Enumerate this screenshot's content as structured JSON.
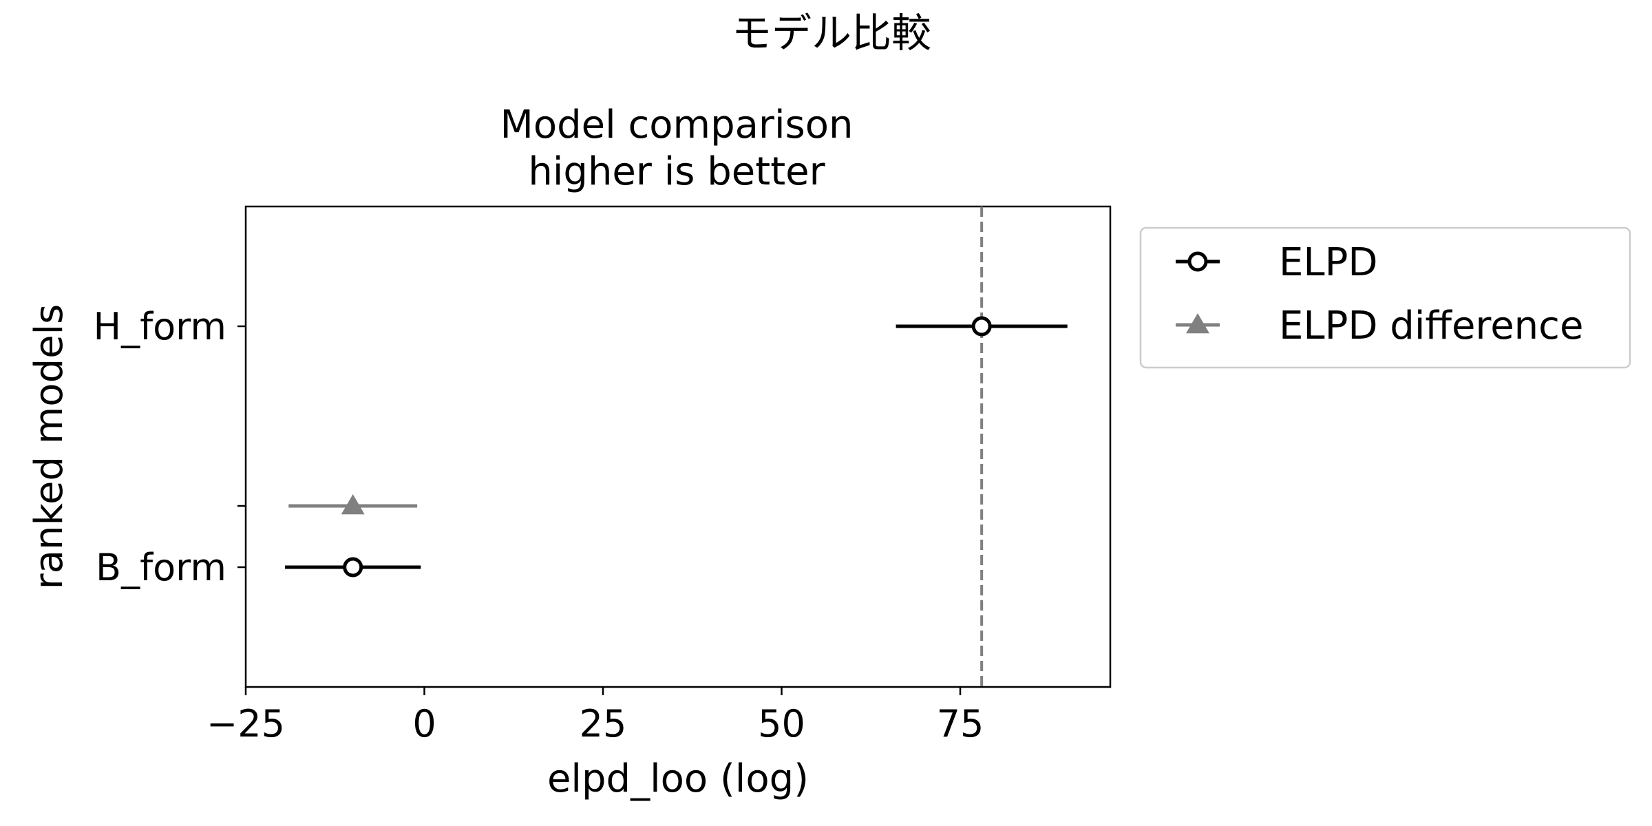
{
  "chart_data": {
    "type": "scatter",
    "suptitle": "モデル比較",
    "title_lines": [
      "Model comparison",
      "higher is better"
    ],
    "xlabel": "elpd_loo (log)",
    "ylabel": "ranked models",
    "xlim": [
      -25,
      96
    ],
    "x_ticks": [
      -25,
      0,
      25,
      50,
      75
    ],
    "x_tick_labels": [
      "−25",
      "0",
      "25",
      "50",
      "75"
    ],
    "models": [
      "H_form",
      "B_form"
    ],
    "grid": false,
    "legend_placement": "outside-upper-right",
    "reference_line": {
      "x": 78,
      "color": "#808080",
      "style": "dashed"
    },
    "series": [
      {
        "name": "ELPD",
        "marker": "open-circle",
        "color": "#000000",
        "points": [
          {
            "model": "H_form",
            "x": 78,
            "err_low": 66,
            "err_high": 90
          },
          {
            "model": "B_form",
            "x": -10,
            "err_low": -19.5,
            "err_high": -0.5
          }
        ]
      },
      {
        "name": "ELPD difference",
        "marker": "triangle",
        "color": "#808080",
        "points": [
          {
            "model": "B_form",
            "x": -10,
            "err_low": -19,
            "err_high": -1
          }
        ]
      }
    ]
  }
}
